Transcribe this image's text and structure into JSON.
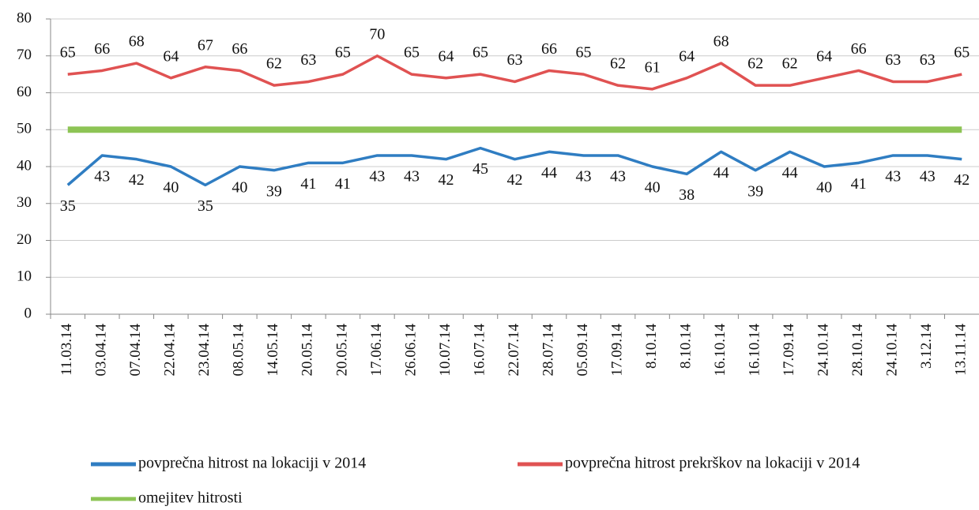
{
  "chart_data": {
    "type": "line",
    "categories": [
      "11.03.14",
      "03.04.14",
      "07.04.14",
      "22.04.14",
      "23.04.14",
      "08.05.14",
      "14.05.14",
      "20.05.14",
      "20.05.14",
      "17.06.14",
      "26.06.14",
      "10.07.14",
      "16.07.14",
      "22.07.14",
      "28.07.14",
      "05.09.14",
      "17.09.14",
      "8.10.14",
      "8.10.14",
      "16.10.14",
      "16.10.14",
      "17.09.14",
      "24.10.14",
      "28.10.14",
      "24.10.14",
      "3.12.14",
      "13.11.14"
    ],
    "series": [
      {
        "name": "povprečna hitrost na lokaciji v 2014",
        "color": "#2f7dc2",
        "labels": "below",
        "values": [
          35,
          43,
          42,
          40,
          35,
          40,
          39,
          41,
          41,
          43,
          43,
          42,
          45,
          42,
          44,
          43,
          43,
          40,
          38,
          44,
          39,
          44,
          40,
          41,
          43,
          43,
          42
        ]
      },
      {
        "name": "povprečna hitrost prekrškov na lokaciji v 2014",
        "color": "#e05252",
        "labels": "above",
        "values": [
          65,
          66,
          68,
          64,
          67,
          66,
          62,
          63,
          65,
          70,
          65,
          64,
          65,
          63,
          66,
          65,
          62,
          61,
          64,
          68,
          62,
          62,
          64,
          66,
          63,
          63,
          65
        ]
      },
      {
        "name": "omejitev hitrosti",
        "color": "#8dc455",
        "values": [
          50,
          50,
          50,
          50,
          50,
          50,
          50,
          50,
          50,
          50,
          50,
          50,
          50,
          50,
          50,
          50,
          50,
          50,
          50,
          50,
          50,
          50,
          50,
          50,
          50,
          50,
          50
        ]
      }
    ],
    "ylim": [
      0,
      80
    ],
    "yticks": [
      0,
      10,
      20,
      30,
      40,
      50,
      60,
      70,
      80
    ],
    "grid": true
  }
}
